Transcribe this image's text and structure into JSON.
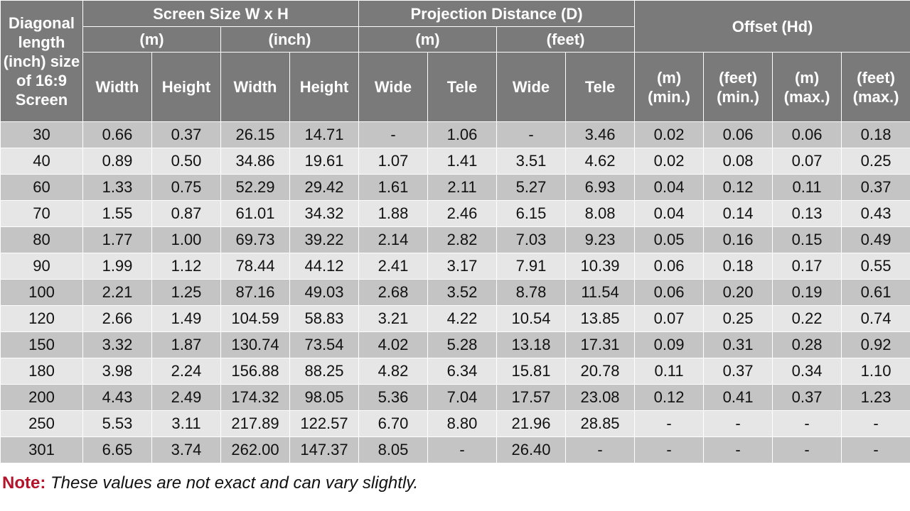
{
  "header": {
    "diagonal": "Diagonal length (inch) size of 16:9 Screen",
    "screen_size": "Screen Size W x H",
    "projection_distance": "Projection Distance (D)",
    "offset": "Offset (Hd)",
    "unit_m": "(m)",
    "unit_inch": "(inch)",
    "unit_feet": "(feet)",
    "width": "Width",
    "height": "Height",
    "wide": "Wide",
    "tele": "Tele",
    "off_m_min": "(m) (min.)",
    "off_ft_min": "(feet) (min.)",
    "off_m_max": "(m) (max.)",
    "off_ft_max": "(feet) (max.)"
  },
  "rows": [
    [
      "30",
      "0.66",
      "0.37",
      "26.15",
      "14.71",
      "-",
      "1.06",
      "-",
      "3.46",
      "0.02",
      "0.06",
      "0.06",
      "0.18"
    ],
    [
      "40",
      "0.89",
      "0.50",
      "34.86",
      "19.61",
      "1.07",
      "1.41",
      "3.51",
      "4.62",
      "0.02",
      "0.08",
      "0.07",
      "0.25"
    ],
    [
      "60",
      "1.33",
      "0.75",
      "52.29",
      "29.42",
      "1.61",
      "2.11",
      "5.27",
      "6.93",
      "0.04",
      "0.12",
      "0.11",
      "0.37"
    ],
    [
      "70",
      "1.55",
      "0.87",
      "61.01",
      "34.32",
      "1.88",
      "2.46",
      "6.15",
      "8.08",
      "0.04",
      "0.14",
      "0.13",
      "0.43"
    ],
    [
      "80",
      "1.77",
      "1.00",
      "69.73",
      "39.22",
      "2.14",
      "2.82",
      "7.03",
      "9.23",
      "0.05",
      "0.16",
      "0.15",
      "0.49"
    ],
    [
      "90",
      "1.99",
      "1.12",
      "78.44",
      "44.12",
      "2.41",
      "3.17",
      "7.91",
      "10.39",
      "0.06",
      "0.18",
      "0.17",
      "0.55"
    ],
    [
      "100",
      "2.21",
      "1.25",
      "87.16",
      "49.03",
      "2.68",
      "3.52",
      "8.78",
      "11.54",
      "0.06",
      "0.20",
      "0.19",
      "0.61"
    ],
    [
      "120",
      "2.66",
      "1.49",
      "104.59",
      "58.83",
      "3.21",
      "4.22",
      "10.54",
      "13.85",
      "0.07",
      "0.25",
      "0.22",
      "0.74"
    ],
    [
      "150",
      "3.32",
      "1.87",
      "130.74",
      "73.54",
      "4.02",
      "5.28",
      "13.18",
      "17.31",
      "0.09",
      "0.31",
      "0.28",
      "0.92"
    ],
    [
      "180",
      "3.98",
      "2.24",
      "156.88",
      "88.25",
      "4.82",
      "6.34",
      "15.81",
      "20.78",
      "0.11",
      "0.37",
      "0.34",
      "1.10"
    ],
    [
      "200",
      "4.43",
      "2.49",
      "174.32",
      "98.05",
      "5.36",
      "7.04",
      "17.57",
      "23.08",
      "0.12",
      "0.41",
      "0.37",
      "1.23"
    ],
    [
      "250",
      "5.53",
      "3.11",
      "217.89",
      "122.57",
      "6.70",
      "8.80",
      "21.96",
      "28.85",
      "-",
      "-",
      "-",
      "-"
    ],
    [
      "301",
      "6.65",
      "3.74",
      "262.00",
      "147.37",
      "8.05",
      "-",
      "26.40",
      "-",
      "-",
      "-",
      "-",
      "-"
    ]
  ],
  "note": {
    "label": "Note:",
    "text": "These values are not exact and can vary slightly."
  },
  "colors": {
    "header_bg": "#7a7a7a",
    "band_dark": "#c4c4c4",
    "band_light": "#e6e6e6",
    "note_label": "#b4142a"
  }
}
